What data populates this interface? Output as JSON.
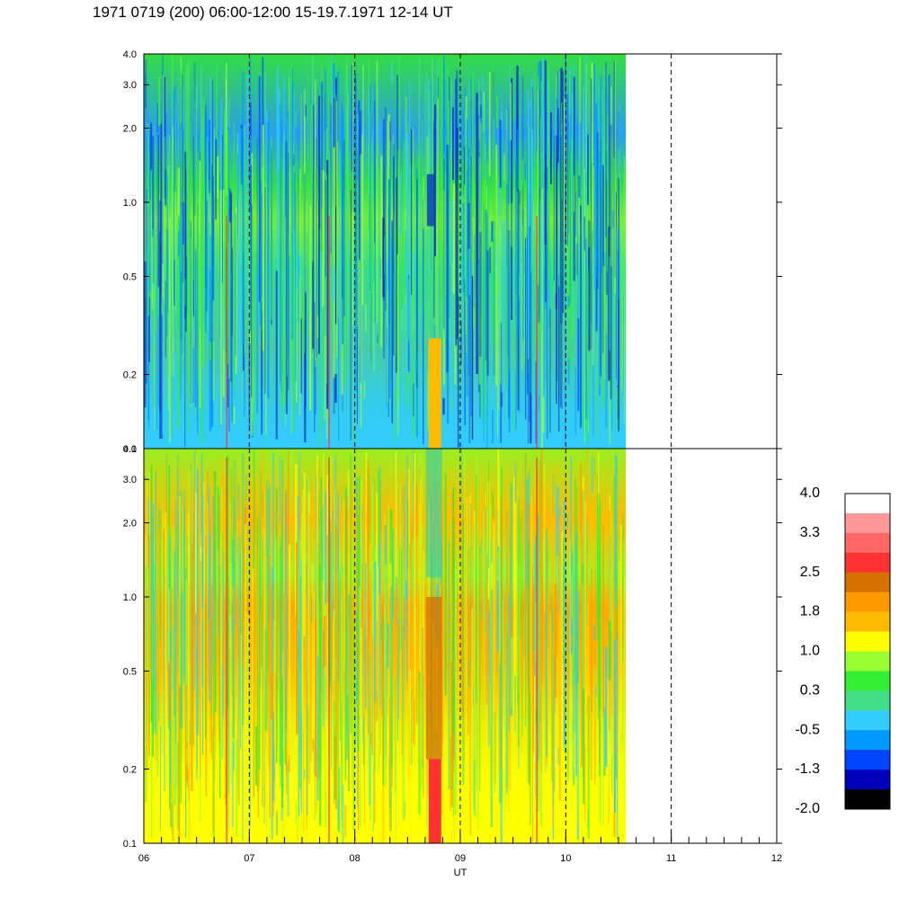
{
  "title": "1971 0719 (200) 06:00-12:00 15-19.7.1971  12-14 UT",
  "chart_data": [
    {
      "type": "heatmap",
      "panel": "top",
      "y_scale": "log",
      "ylim": [
        0.1,
        4.0
      ],
      "yticks": [
        "0.1",
        "0.2",
        "0.5",
        "1.0",
        "2.0",
        "3.0",
        "4.0"
      ],
      "ytick_values": [
        0.1,
        0.2,
        0.5,
        1.0,
        2.0,
        3.0,
        4.0
      ],
      "xlim": [
        "06",
        "12"
      ],
      "data_until": 10.57,
      "background_band_by_freq": [
        {
          "from": 0.1,
          "to": 0.14,
          "color_level": "-0.5"
        },
        {
          "from": 0.14,
          "to": 0.4,
          "color_level": "-0.5 to 0.3"
        },
        {
          "from": 0.4,
          "to": 0.8,
          "color_level": "0.3"
        },
        {
          "from": 0.8,
          "to": 1.2,
          "color_level": "0.3 to 1.0"
        },
        {
          "from": 1.2,
          "to": 4.0,
          "color_level": "-1.3 to 0.3"
        }
      ]
    },
    {
      "type": "heatmap",
      "panel": "bottom",
      "y_scale": "log",
      "ylim": [
        0.1,
        4.0
      ],
      "yticks": [
        "0.1",
        "0.2",
        "0.5",
        "1.0",
        "2.0",
        "3.0",
        "4.0"
      ],
      "ytick_values": [
        0.1,
        0.2,
        0.5,
        1.0,
        2.0,
        3.0,
        4.0
      ],
      "xlim": [
        "06",
        "12"
      ],
      "xticks": [
        "06",
        "07",
        "08",
        "09",
        "10",
        "11",
        "12"
      ],
      "xtick_values": [
        6,
        7,
        8,
        9,
        10,
        11,
        12
      ],
      "xlabel": "UT",
      "data_until": 10.57,
      "background_band_by_freq": [
        {
          "from": 0.1,
          "to": 0.3,
          "color_level": "1.0"
        },
        {
          "from": 0.3,
          "to": 1.3,
          "color_level": "1.0 to 1.8"
        },
        {
          "from": 1.3,
          "to": 4.0,
          "color_level": "0.3 to 1.8"
        }
      ]
    }
  ],
  "colorbar": {
    "labels": [
      "4.0",
      "3.3",
      "2.5",
      "1.8",
      "1.0",
      "0.3",
      "-0.5",
      "-1.3",
      "-2.0"
    ],
    "colors": [
      "#ffffff",
      "#ff9999",
      "#ff6666",
      "#ff3333",
      "#d67000",
      "#ff9900",
      "#ffbb00",
      "#ffff00",
      "#99ff33",
      "#33ee33",
      "#44dd88",
      "#33ccff",
      "#0099ff",
      "#0044ff",
      "#0000bb",
      "#000000"
    ]
  },
  "grid": {
    "dashed_x_hours": [
      7,
      8,
      9,
      10,
      11
    ]
  }
}
